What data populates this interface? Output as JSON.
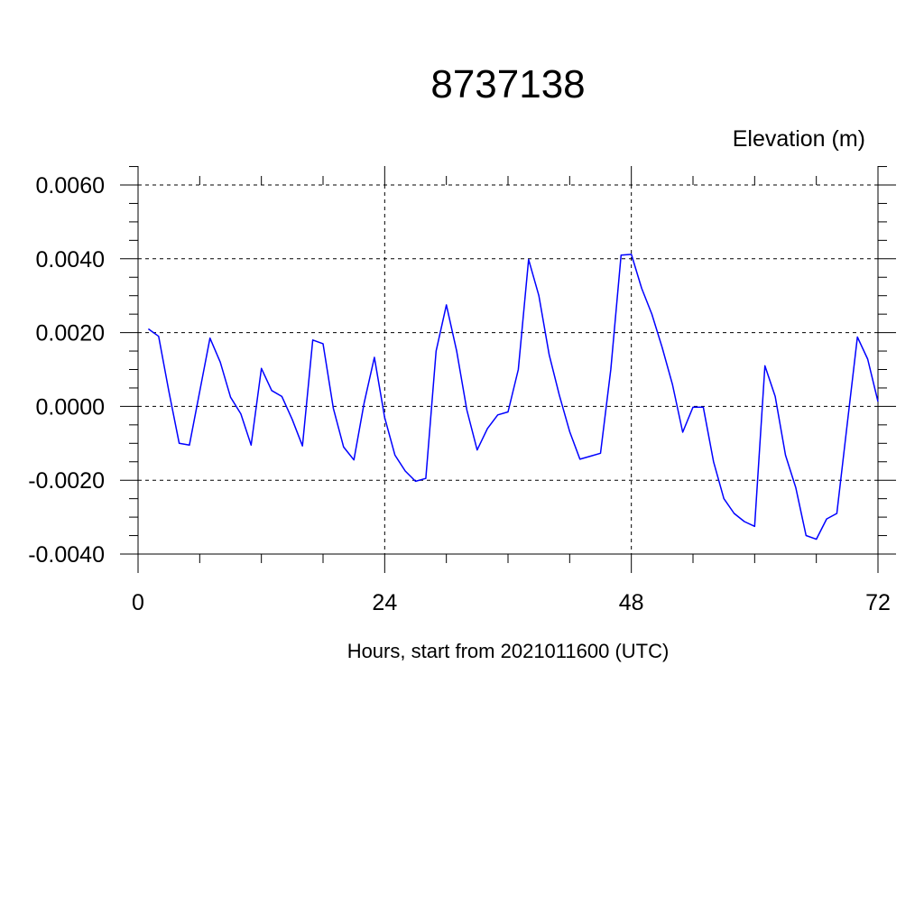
{
  "chart_data": {
    "type": "line",
    "title": "8737138",
    "ylabel": "Elevation (m)",
    "xlabel": "Hours, start from 2021011600 (UTC)",
    "xlim": [
      0,
      72
    ],
    "ylim": [
      -0.004,
      0.006
    ],
    "x_ticks": [
      0,
      24,
      48,
      72
    ],
    "x_tick_labels": [
      "0",
      "24",
      "48",
      "72"
    ],
    "y_ticks": [
      -0.004,
      -0.002,
      0.0,
      0.002,
      0.004,
      0.006
    ],
    "y_tick_labels": [
      "-0.0040",
      "-0.0020",
      "0.0000",
      "0.0020",
      "0.0040",
      "0.0060"
    ],
    "grid": "dashed at major ticks",
    "series": [
      {
        "color": "#0000ff",
        "x": [
          1,
          2,
          3,
          4,
          5,
          6,
          7,
          8,
          9,
          10,
          11,
          12,
          13,
          14,
          15,
          16,
          17,
          18,
          19,
          20,
          21,
          22,
          23,
          24,
          25,
          26,
          27,
          28,
          29,
          30,
          31,
          32,
          33,
          34,
          35,
          36,
          37,
          38,
          39,
          40,
          41,
          42,
          43,
          44,
          45,
          46,
          47,
          48,
          49,
          50,
          51,
          52,
          53,
          54,
          55,
          56,
          57,
          58,
          59,
          60,
          61,
          62,
          63,
          64,
          65,
          66,
          67,
          68,
          69,
          70,
          71,
          72
        ],
        "values": [
          0.0021,
          0.0019,
          0.0004,
          -0.001,
          -0.00105,
          0.0004,
          0.00185,
          0.0012,
          0.00025,
          -0.0002,
          -0.00105,
          0.00103,
          0.00043,
          0.00027,
          -0.00035,
          -0.00107,
          0.0018,
          0.0017,
          -5e-05,
          -0.0011,
          -0.00145,
          0.0001,
          0.00133,
          -0.0003,
          -0.00132,
          -0.00175,
          -0.00203,
          -0.00195,
          0.0015,
          0.00275,
          0.0015,
          -0.0001,
          -0.00118,
          -0.0006,
          -0.00023,
          -0.00015,
          0.001,
          0.00398,
          0.003,
          0.0014,
          0.0003,
          -0.00068,
          -0.00143,
          -0.00135,
          -0.00127,
          0.001,
          0.0041,
          0.00412,
          0.0032,
          0.0025,
          0.0016,
          0.0006,
          -0.0007,
          -2e-05,
          -2e-05,
          -0.0015,
          -0.0025,
          -0.0029,
          -0.00312,
          -0.00325,
          0.0011,
          0.00027,
          -0.00132,
          -0.0022,
          -0.0035,
          -0.0036,
          -0.00305,
          -0.0029,
          -0.0005,
          0.00188,
          0.00128,
          0.00013
        ]
      }
    ]
  }
}
